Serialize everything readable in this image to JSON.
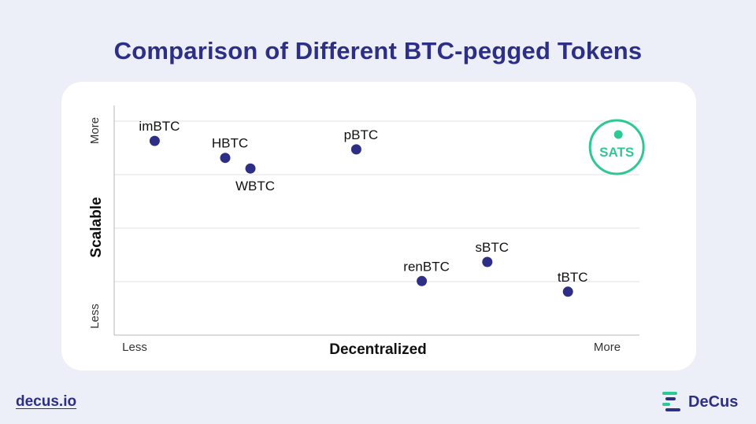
{
  "title": "Comparison of Different BTC-pegged Tokens",
  "chart_data": {
    "type": "scatter",
    "xlabel": "Decentralized",
    "ylabel": "Scalable",
    "x_min_label": "Less",
    "x_max_label": "More",
    "y_min_label": "Less",
    "y_max_label": "More",
    "xlim": [
      0,
      10
    ],
    "ylim": [
      0,
      10
    ],
    "grid": "horizontal",
    "points": [
      {
        "label": "imBTC",
        "x": 0.6,
        "y": 8.7,
        "label_pos": "above"
      },
      {
        "label": "HBTC",
        "x": 2.0,
        "y": 7.9,
        "label_pos": "above"
      },
      {
        "label": "WBTC",
        "x": 2.5,
        "y": 7.4,
        "label_pos": "below"
      },
      {
        "label": "pBTC",
        "x": 4.6,
        "y": 8.3,
        "label_pos": "above"
      },
      {
        "label": "renBTC",
        "x": 5.9,
        "y": 2.1,
        "label_pos": "above"
      },
      {
        "label": "sBTC",
        "x": 7.2,
        "y": 3.0,
        "label_pos": "above"
      },
      {
        "label": "tBTC",
        "x": 8.8,
        "y": 1.6,
        "label_pos": "above"
      }
    ],
    "highlight": {
      "label": "SATS",
      "x": 9.8,
      "y": 9.0,
      "color": "#2ec896"
    },
    "point_color": "#2d2f86"
  },
  "footer": {
    "link": "decus.io",
    "brand": "DeCus",
    "brand_icon": "decus-logo-icon"
  },
  "colors": {
    "background": "#eceef8",
    "title": "#2d2f86",
    "accent": "#2ec896"
  }
}
